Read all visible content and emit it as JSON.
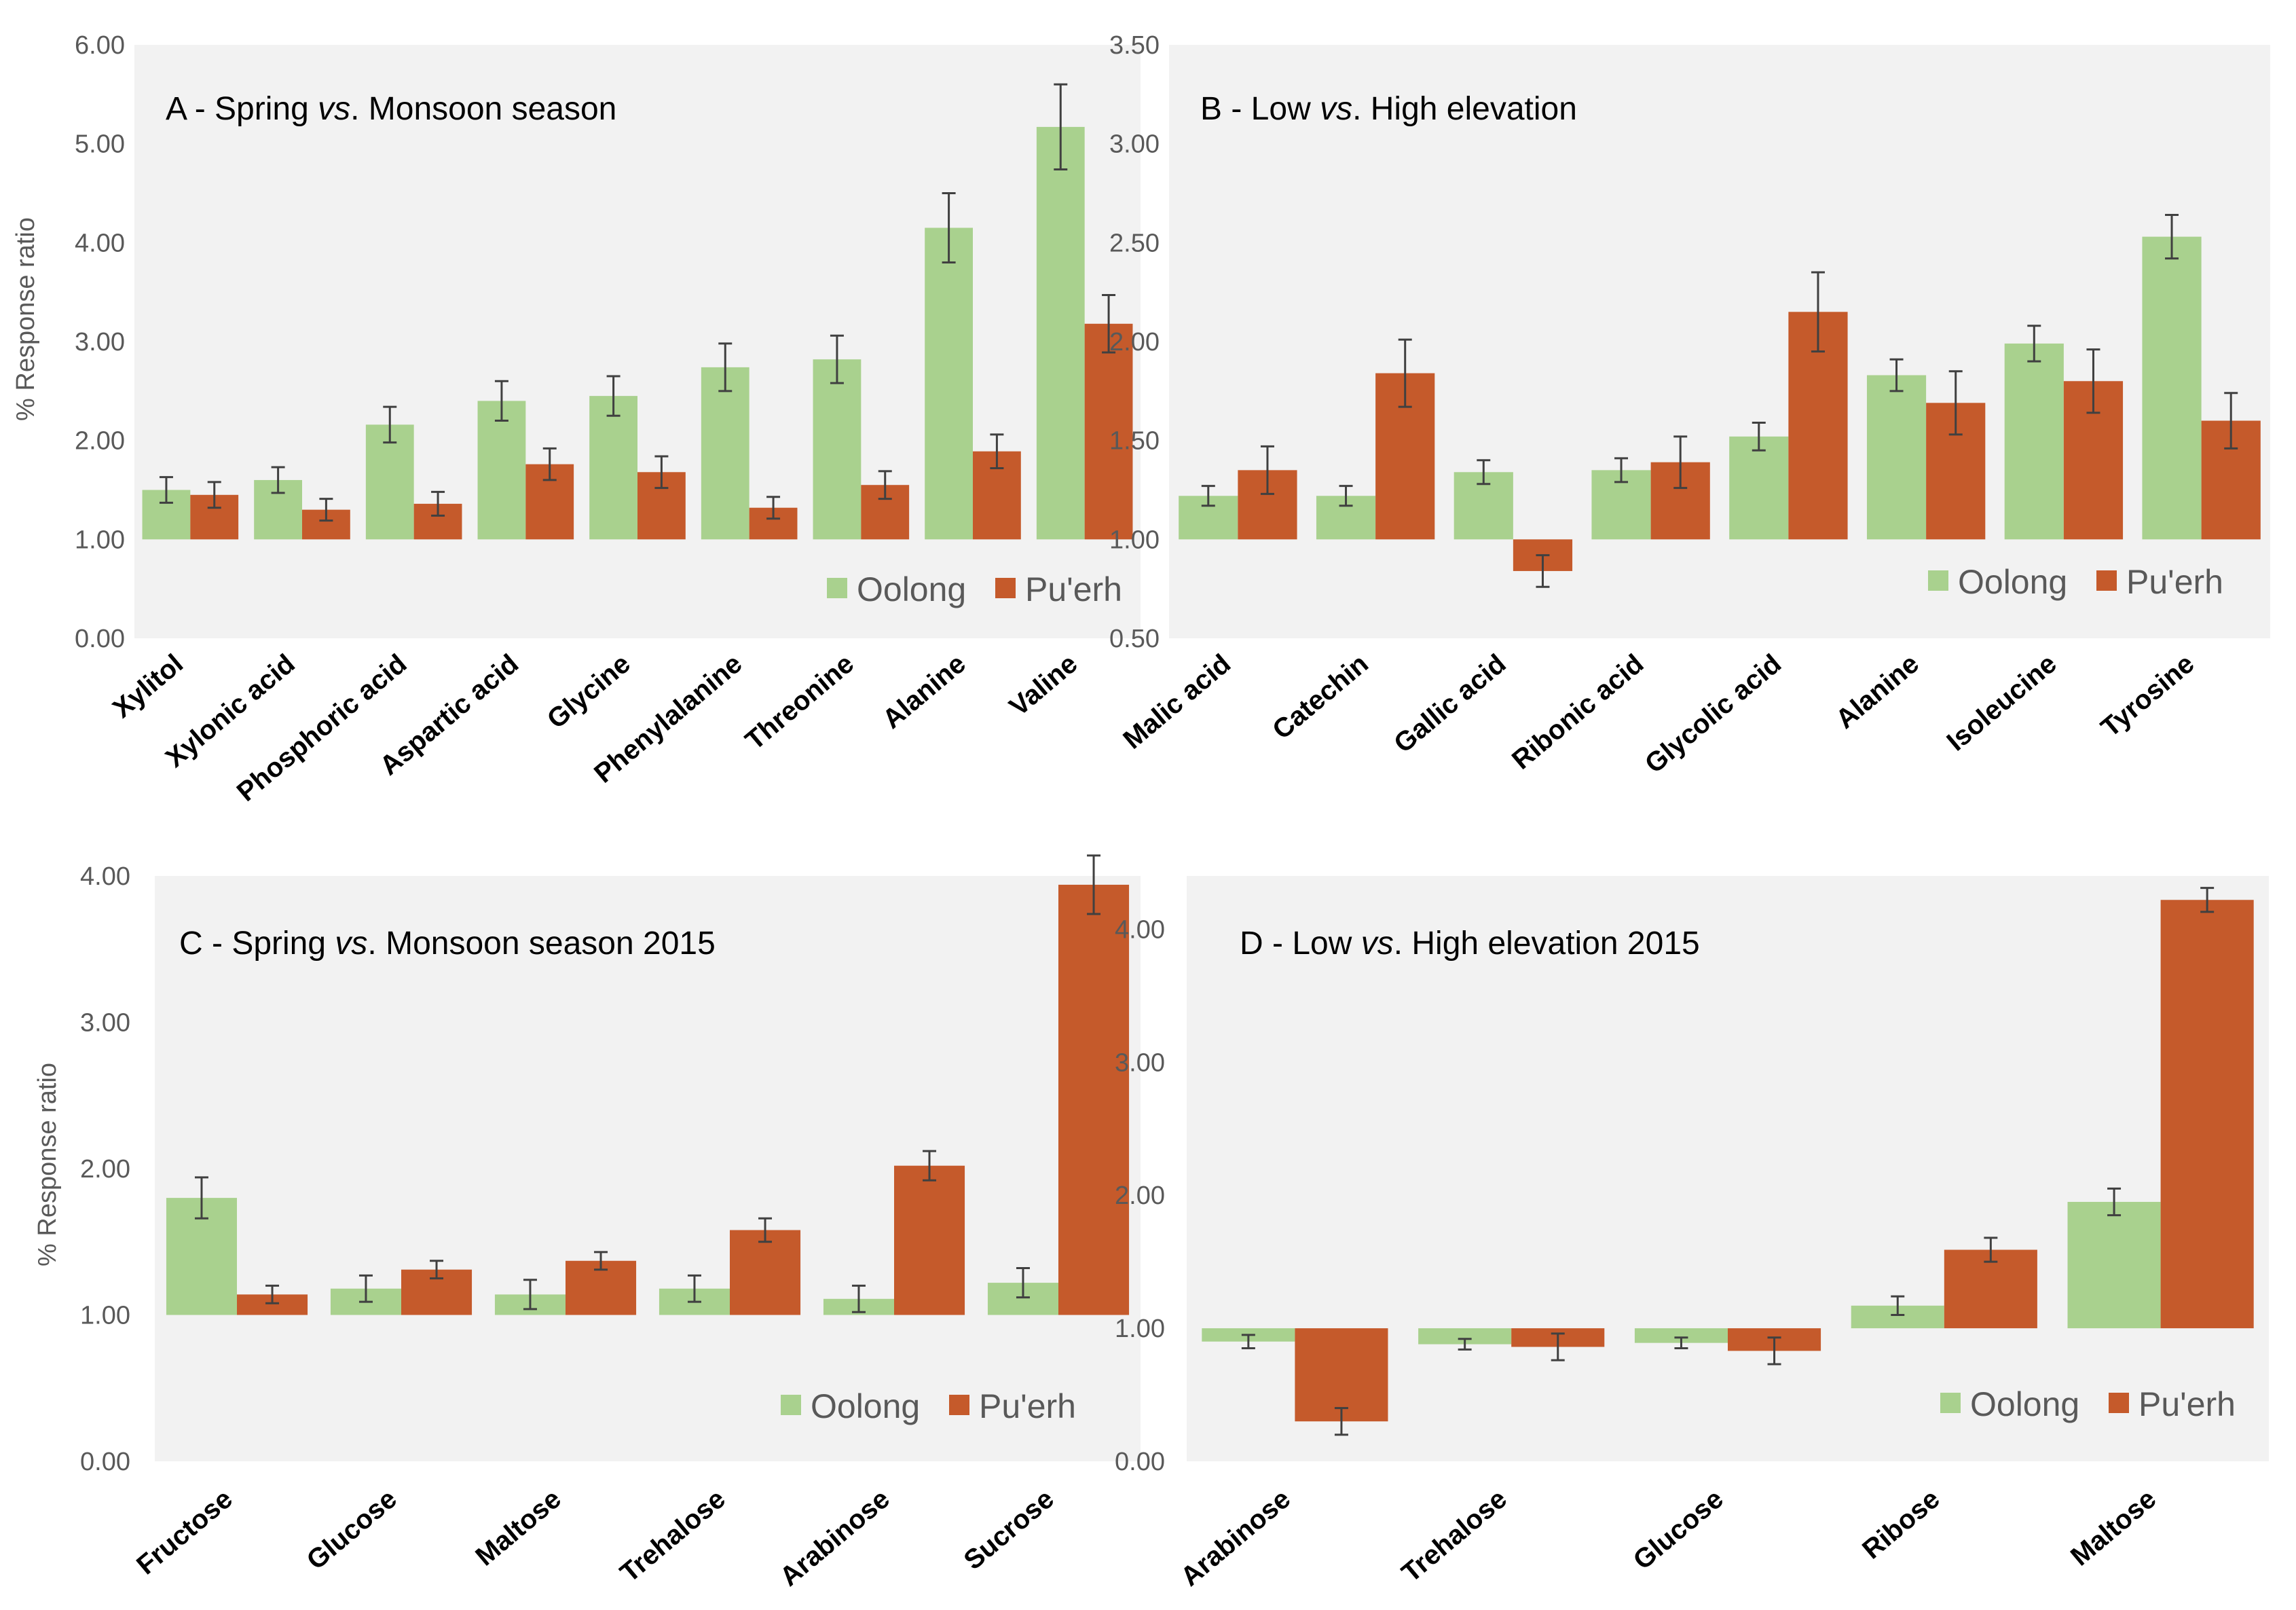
{
  "colors": {
    "oolong": "#a9d18e",
    "puerh": "#c55a2b",
    "plot_bg": "#f2f2f2",
    "errorbar": "#404040"
  },
  "chart_data": [
    {
      "id": "A",
      "type": "bar",
      "title_prefix": "A - Spring ",
      "title_italic": "vs",
      "title_suffix": ". Monsoon season",
      "ylabel": "% Response ratio",
      "xlabel": "",
      "ylim": [
        0,
        6
      ],
      "baseline": 1.0,
      "yticks": [
        "0.00",
        "1.00",
        "2.00",
        "3.00",
        "4.00",
        "5.00",
        "6.00"
      ],
      "categories": [
        "Xylitol",
        "Xylonic acid",
        "Phosphoric acid",
        "Aspartic acid",
        "Glycine",
        "Phenylalanine",
        "Threonine",
        "Alanine",
        "Valine"
      ],
      "series": [
        {
          "name": "Oolong",
          "values": [
            1.5,
            1.6,
            2.16,
            2.4,
            2.45,
            2.74,
            2.82,
            4.15,
            5.17
          ],
          "errors": [
            0.13,
            0.13,
            0.18,
            0.2,
            0.2,
            0.24,
            0.24,
            0.35,
            0.43
          ]
        },
        {
          "name": "Pu'erh",
          "values": [
            1.45,
            1.3,
            1.36,
            1.76,
            1.68,
            1.32,
            1.55,
            1.89,
            3.18
          ],
          "errors": [
            0.13,
            0.11,
            0.12,
            0.16,
            0.16,
            0.11,
            0.14,
            0.17,
            0.29
          ]
        }
      ],
      "legend": [
        "Oolong",
        "Pu'erh"
      ],
      "legend_position": "bottom-right"
    },
    {
      "id": "B",
      "type": "bar",
      "title_prefix": "B - Low ",
      "title_italic": "vs",
      "title_suffix": ". High elevation",
      "ylabel": "",
      "xlabel": "",
      "ylim": [
        0.5,
        3.5
      ],
      "baseline": 1.0,
      "yticks": [
        "0.50",
        "1.00",
        "1.50",
        "2.00",
        "2.50",
        "3.00",
        "3.50"
      ],
      "categories": [
        "Malic acid",
        "Catechin",
        "Gallic acid",
        "Ribonic acid",
        "Glycolic acid",
        "Alanine",
        "Isoleucine",
        "Tyrosine"
      ],
      "series": [
        {
          "name": "Oolong",
          "values": [
            1.22,
            1.22,
            1.34,
            1.35,
            1.52,
            1.83,
            1.99,
            2.53
          ],
          "errors": [
            0.05,
            0.05,
            0.06,
            0.06,
            0.07,
            0.08,
            0.09,
            0.11
          ]
        },
        {
          "name": "Pu'erh",
          "values": [
            1.35,
            1.84,
            0.84,
            1.39,
            2.15,
            1.69,
            1.8,
            1.6
          ],
          "errors": [
            0.12,
            0.17,
            0.08,
            0.13,
            0.2,
            0.16,
            0.16,
            0.14
          ]
        }
      ],
      "legend": [
        "Oolong",
        "Pu'erh"
      ],
      "legend_position": "bottom-right"
    },
    {
      "id": "C",
      "type": "bar",
      "title_prefix": "C - Spring ",
      "title_italic": "vs",
      "title_suffix": ". Monsoon season 2015",
      "ylabel": "% Response ratio",
      "xlabel": "",
      "ylim": [
        0,
        4
      ],
      "baseline": 1.0,
      "yticks": [
        "0.00",
        "1.00",
        "2.00",
        "3.00",
        "4.00"
      ],
      "categories": [
        "Fructose",
        "Glucose",
        "Maltose",
        "Trehalose",
        "Arabinose",
        "Sucrose"
      ],
      "series": [
        {
          "name": "Oolong",
          "values": [
            1.8,
            1.18,
            1.14,
            1.18,
            1.11,
            1.22
          ],
          "errors": [
            0.14,
            0.09,
            0.1,
            0.09,
            0.09,
            0.1
          ]
        },
        {
          "name": "Pu'erh",
          "values": [
            1.14,
            1.31,
            1.37,
            1.58,
            2.02,
            3.94
          ],
          "errors": [
            0.06,
            0.06,
            0.06,
            0.08,
            0.1,
            0.2
          ]
        }
      ],
      "legend": [
        "Oolong",
        "Pu'erh"
      ],
      "legend_position": "bottom-right"
    },
    {
      "id": "D",
      "type": "bar",
      "title_prefix": "D - Low ",
      "title_italic": "vs",
      "title_suffix": ". High elevation 2015",
      "ylabel": "",
      "xlabel": "",
      "ylim": [
        0,
        4.4
      ],
      "baseline": 1.0,
      "yticks": [
        "0.00",
        "1.00",
        "2.00",
        "3.00",
        "4.00"
      ],
      "categories": [
        "Arabinose",
        "Trehalose",
        "Glucose",
        "Ribose",
        "Maltose"
      ],
      "series": [
        {
          "name": "Oolong",
          "values": [
            0.9,
            0.88,
            0.89,
            1.17,
            1.95
          ],
          "errors": [
            0.05,
            0.04,
            0.04,
            0.07,
            0.1
          ]
        },
        {
          "name": "Pu'erh",
          "values": [
            0.3,
            0.86,
            0.83,
            1.59,
            4.22
          ],
          "errors": [
            0.1,
            0.1,
            0.1,
            0.09,
            0.09
          ]
        }
      ],
      "legend": [
        "Oolong",
        "Pu'erh"
      ],
      "legend_position": "bottom-right"
    }
  ]
}
